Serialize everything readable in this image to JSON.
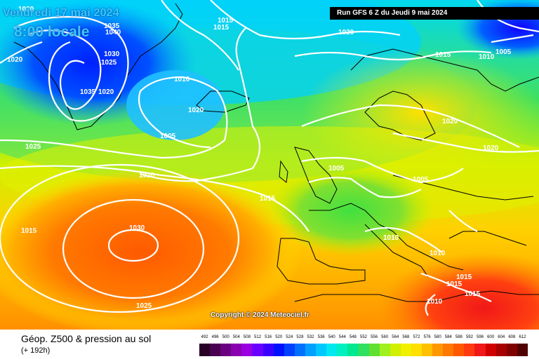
{
  "header": {
    "valid_time": "Vendredi 17 mai 2024",
    "local_time": "8:00 locale",
    "run_info": "Run GFS 6 Z du Jeudi 9 mai 2024"
  },
  "copyright": "Copyright © 2024 Meteociel.fr",
  "footer": {
    "title": "Géop. Z500 & pression au sol",
    "forecast_offset": "(+ 192h)"
  },
  "legend": {
    "scale_labels": [
      "492",
      "496",
      "500",
      "504",
      "508",
      "512",
      "516",
      "520",
      "524",
      "528",
      "532",
      "536",
      "540",
      "544",
      "548",
      "552",
      "556",
      "560",
      "564",
      "568",
      "572",
      "576",
      "580",
      "584",
      "588",
      "592",
      "596",
      "600",
      "604",
      "608",
      "612"
    ],
    "scale_colors": [
      "#280028",
      "#4a0050",
      "#6a0080",
      "#8a00b0",
      "#9a00e0",
      "#6a00ff",
      "#3a00ff",
      "#0010ff",
      "#0040ff",
      "#0070ff",
      "#00a0ff",
      "#00c8ff",
      "#00e8f0",
      "#00f0c0",
      "#00e890",
      "#30e060",
      "#60e030",
      "#a0f020",
      "#d0f000",
      "#f0f000",
      "#ffe000",
      "#ffc000",
      "#ff9800",
      "#ff7800",
      "#ff5800",
      "#ff3a10",
      "#f01818",
      "#d00000",
      "#a80000",
      "#800000",
      "#500000"
    ]
  },
  "isobar_labels": [
    {
      "text": "1020",
      "key": "a"
    },
    {
      "text": "1035",
      "key": "b"
    },
    {
      "text": "1040",
      "key": "c"
    },
    {
      "text": "1015",
      "key": "d"
    },
    {
      "text": "1015",
      "key": "e"
    },
    {
      "text": "1020",
      "key": "f"
    },
    {
      "text": "1030",
      "key": "g"
    },
    {
      "text": "1025",
      "key": "h"
    },
    {
      "text": "1035",
      "key": "i"
    },
    {
      "text": "1020",
      "key": "j"
    },
    {
      "text": "1010",
      "key": "k"
    },
    {
      "text": "1005",
      "key": "l"
    },
    {
      "text": "1025",
      "key": "m"
    },
    {
      "text": "1020",
      "key": "n"
    },
    {
      "text": "1015",
      "key": "o"
    },
    {
      "text": "1030",
      "key": "p"
    },
    {
      "text": "1015",
      "key": "q"
    },
    {
      "text": "1025",
      "key": "r"
    },
    {
      "text": "1020",
      "key": "s"
    },
    {
      "text": "1015",
      "key": "t"
    },
    {
      "text": "1010",
      "key": "u"
    },
    {
      "text": "1005",
      "key": "v"
    },
    {
      "text": "1020",
      "key": "w"
    },
    {
      "text": "1020",
      "key": "x"
    },
    {
      "text": "1005",
      "key": "y"
    },
    {
      "text": "1005",
      "key": "z"
    },
    {
      "text": "1010",
      "key": "aa"
    },
    {
      "text": "1010",
      "key": "bb"
    },
    {
      "text": "1015",
      "key": "cc"
    },
    {
      "text": "1015",
      "key": "dd"
    },
    {
      "text": "1015",
      "key": "ee"
    },
    {
      "text": "1010",
      "key": "ff"
    },
    {
      "text": "1020",
      "key": "gg"
    }
  ]
}
